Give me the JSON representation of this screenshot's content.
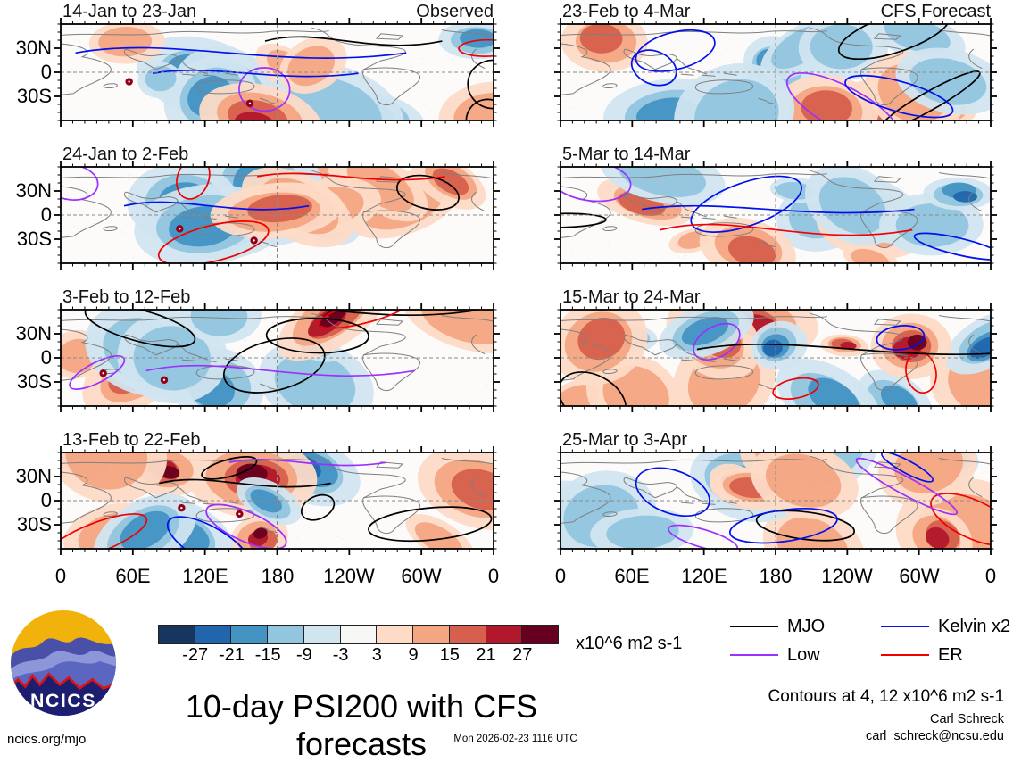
{
  "branding": {
    "logo_text": "NCICS",
    "site": "ncics.org/mjo"
  },
  "panels": [
    {
      "title": "14-Jan to 23-Jan",
      "corner": "Observed"
    },
    {
      "title": "23-Feb to 4-Mar",
      "corner": "CFS Forecast"
    },
    {
      "title": "24-Jan to 2-Feb",
      "corner": ""
    },
    {
      "title": "5-Mar to 14-Mar",
      "corner": ""
    },
    {
      "title": "3-Feb to 12-Feb",
      "corner": ""
    },
    {
      "title": "15-Mar to 24-Mar",
      "corner": ""
    },
    {
      "title": "13-Feb to 22-Feb",
      "corner": ""
    },
    {
      "title": "25-Mar to 3-Apr",
      "corner": ""
    }
  ],
  "axes": {
    "y_labels": [
      "30N",
      "0",
      "30S"
    ],
    "x_labels": [
      "0",
      "60E",
      "120E",
      "180",
      "120W",
      "60W",
      "0"
    ]
  },
  "colorbar": {
    "tick_labels": [
      "-27",
      "-21",
      "-15",
      "-9",
      "-3",
      "3",
      "9",
      "15",
      "21",
      "27"
    ],
    "colors": [
      "#17365f",
      "#2166ac",
      "#4393c3",
      "#92c5de",
      "#d1e5f0",
      "#f7f7f5",
      "#fddbc7",
      "#f4a582",
      "#d6604d",
      "#b2182b",
      "#67001f"
    ],
    "units": "x10^6 m2 s-1"
  },
  "legend": {
    "items": [
      {
        "label": "MJO",
        "color": "#000000"
      },
      {
        "label": "Low",
        "color": "#9b30ff"
      },
      {
        "label": "Kelvin x2",
        "color": "#0010ee"
      },
      {
        "label": "ER",
        "color": "#f00000"
      }
    ]
  },
  "footer": {
    "title": "10-day PSI200 with CFS forecasts",
    "contours_note": "Contours at 4, 12 x10^6 m2 s-1",
    "author": "Carl Schreck",
    "email": "carl_schreck@ncsu.edu",
    "timestamp": "Mon 2026-02-23 1116 UTC"
  },
  "chart_data": {
    "type": "heatmap",
    "title": "10-day PSI200 with CFS forecasts",
    "description": "Eight longitude-latitude panels of 10-day mean 200 hPa streamfunction (PSI200) anomalies with wave-filtered contour overlays; left column is Observed, right column is CFS Forecast.",
    "panel_layout": {
      "rows": 4,
      "cols": 2,
      "left_column": "Observed",
      "right_column": "CFS Forecast"
    },
    "panels": [
      "14-Jan to 23-Jan",
      "23-Feb to 4-Mar",
      "24-Jan to 2-Feb",
      "5-Mar to 14-Mar",
      "3-Feb to 12-Feb",
      "15-Mar to 24-Mar",
      "13-Feb to 22-Feb",
      "25-Mar to 3-Apr"
    ],
    "x_axis": {
      "ticks": [
        "0",
        "60E",
        "120E",
        "180",
        "120W",
        "60W",
        "0"
      ],
      "range_deg_lon": [
        0,
        360
      ],
      "grid": "dashed line at 180"
    },
    "y_axis": {
      "ticks": [
        "30N",
        "0",
        "30S"
      ],
      "grid": "dashed line at equator"
    },
    "fill_scale": {
      "units": "x10^6 m2 s-1",
      "levels": [
        -27,
        -21,
        -15,
        -9,
        -3,
        3,
        9,
        15,
        21,
        27
      ],
      "colors": [
        "#17365f",
        "#2166ac",
        "#4393c3",
        "#92c5de",
        "#d1e5f0",
        "#f7f7f5",
        "#fddbc7",
        "#f4a582",
        "#d6604d",
        "#b2182b",
        "#67001f"
      ]
    },
    "contour_overlays": [
      {
        "name": "MJO",
        "color": "#000000"
      },
      {
        "name": "Low",
        "color": "#9b30ff"
      },
      {
        "name": "Kelvin x2",
        "color": "#0010ee"
      },
      {
        "name": "ER",
        "color": "#f00000"
      }
    ],
    "contour_levels_note": "Contours at 4, 12 x10^6 m2 s-1",
    "legend_position": "bottom-right"
  }
}
